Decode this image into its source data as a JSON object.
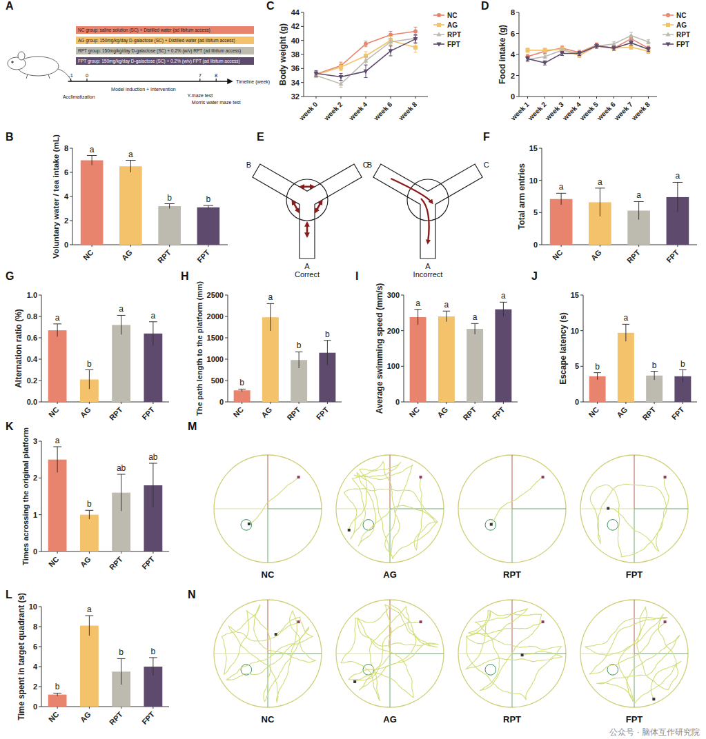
{
  "chart_data": [
    {
      "panel": "C",
      "type": "line",
      "ylabel": "Body weight (g)",
      "categories": [
        "week 0",
        "week 2",
        "week 4",
        "week 6",
        "week 8"
      ],
      "ylim": [
        32,
        44
      ],
      "yticks": [
        32,
        34,
        36,
        38,
        40,
        42,
        44
      ],
      "legend": "right",
      "series": [
        {
          "name": "NC",
          "color": "#e8836d",
          "marker": "circle",
          "values": [
            35.2,
            36.4,
            39.5,
            40.8,
            41.3
          ],
          "errors": [
            0.4,
            0.5,
            0.4,
            0.5,
            0.6
          ]
        },
        {
          "name": "AG",
          "color": "#f3c26a",
          "marker": "square",
          "values": [
            35.1,
            36.2,
            37.8,
            40.0,
            39.0
          ],
          "errors": [
            0.4,
            0.5,
            0.6,
            0.6,
            0.7
          ]
        },
        {
          "name": "RPT",
          "color": "#bdbab0",
          "marker": "triangle",
          "values": [
            35.0,
            33.8,
            37.1,
            39.8,
            40.3
          ],
          "errors": [
            0.3,
            0.5,
            0.6,
            0.5,
            0.6
          ]
        },
        {
          "name": "FPT",
          "color": "#5d4a6c",
          "marker": "triangle-down",
          "values": [
            35.3,
            34.8,
            35.6,
            38.5,
            40.2
          ],
          "errors": [
            0.4,
            0.5,
            0.9,
            0.7,
            0.6
          ]
        }
      ]
    },
    {
      "panel": "D",
      "type": "line",
      "ylabel": "Food intake (g)",
      "categories": [
        "week 1",
        "week 2",
        "week 3",
        "week 4",
        "week 5",
        "week 6",
        "week 7",
        "week 8"
      ],
      "ylim": [
        0,
        8
      ],
      "yticks": [
        0,
        2,
        4,
        6,
        8
      ],
      "legend": "right",
      "series": [
        {
          "name": "NC",
          "color": "#e8836d",
          "marker": "circle",
          "values": [
            3.8,
            4.3,
            4.6,
            4.2,
            4.9,
            4.6,
            5.5,
            4.6
          ],
          "errors": [
            0.2,
            0.2,
            0.2,
            0.2,
            0.2,
            0.2,
            0.3,
            0.2
          ]
        },
        {
          "name": "AG",
          "color": "#f3c26a",
          "marker": "square",
          "values": [
            4.4,
            4.4,
            4.5,
            3.9,
            4.8,
            4.6,
            4.7,
            4.3
          ],
          "errors": [
            0.2,
            0.2,
            0.2,
            0.2,
            0.2,
            0.2,
            0.2,
            0.2
          ]
        },
        {
          "name": "RPT",
          "color": "#bdbab0",
          "marker": "triangle",
          "values": [
            3.5,
            3.8,
            4.4,
            4.1,
            4.8,
            5.0,
            5.8,
            5.2
          ],
          "errors": [
            0.2,
            0.2,
            0.2,
            0.2,
            0.2,
            0.2,
            0.3,
            0.2
          ]
        },
        {
          "name": "FPT",
          "color": "#5d4a6c",
          "marker": "triangle-down",
          "values": [
            3.6,
            3.2,
            4.1,
            4.1,
            4.8,
            4.6,
            5.1,
            4.5
          ],
          "errors": [
            0.2,
            0.2,
            0.2,
            0.2,
            0.2,
            0.2,
            0.2,
            0.2
          ]
        }
      ]
    },
    {
      "panel": "B",
      "type": "bar",
      "ylabel": "Voluntary water / tea intake (mL)",
      "categories": [
        "NC",
        "AG",
        "RPT",
        "FPT"
      ],
      "values": [
        7.0,
        6.5,
        3.2,
        3.1
      ],
      "errors": [
        0.4,
        0.5,
        0.2,
        0.15
      ],
      "significance": [
        "a",
        "a",
        "b",
        "b"
      ],
      "colors": [
        "#e8836d",
        "#f3c26a",
        "#bdbab0",
        "#5d4a6c"
      ],
      "ylim": [
        0,
        8
      ],
      "yticks": [
        0,
        2,
        4,
        6,
        8
      ]
    },
    {
      "panel": "F",
      "type": "bar",
      "ylabel": "Total arm entries",
      "categories": [
        "NC",
        "AG",
        "RPT",
        "FPT"
      ],
      "values": [
        7.1,
        6.6,
        5.3,
        7.4
      ],
      "errors": [
        0.9,
        2.2,
        1.4,
        2.3
      ],
      "significance": [
        "a",
        "a",
        "a",
        "a"
      ],
      "colors": [
        "#e8836d",
        "#f3c26a",
        "#bdbab0",
        "#5d4a6c"
      ],
      "ylim": [
        0,
        15
      ],
      "yticks": [
        0,
        5,
        10,
        15
      ]
    },
    {
      "panel": "G",
      "type": "bar",
      "ylabel": "Alternation ratio (%)",
      "categories": [
        "NC",
        "AG",
        "RPT",
        "FPT"
      ],
      "values": [
        0.67,
        0.21,
        0.72,
        0.64
      ],
      "errors": [
        0.06,
        0.09,
        0.09,
        0.11
      ],
      "significance": [
        "a",
        "b",
        "a",
        "a"
      ],
      "colors": [
        "#e8836d",
        "#f3c26a",
        "#bdbab0",
        "#5d4a6c"
      ],
      "ylim": [
        0,
        1
      ],
      "yticks": [
        {
          "value": 0,
          "label": "0.0"
        },
        0.2,
        0.4,
        0.6,
        0.8,
        {
          "value": 1,
          "label": "1.0"
        }
      ]
    },
    {
      "panel": "H",
      "type": "bar",
      "ylabel": "The path length to the platform (mm)",
      "categories": [
        "NC",
        "AG",
        "RPT",
        "FPT"
      ],
      "values": [
        270,
        1980,
        980,
        1150
      ],
      "errors": [
        30,
        320,
        190,
        290
      ],
      "significance": [
        "b",
        "a",
        "b",
        "b"
      ],
      "colors": [
        "#e8836d",
        "#f3c26a",
        "#bdbab0",
        "#5d4a6c"
      ],
      "ylim": [
        0,
        2500
      ],
      "yticks": [
        0,
        500,
        1000,
        1500,
        2000,
        2500
      ]
    },
    {
      "panel": "I",
      "type": "bar",
      "ylabel": "Average swimming speed (mm/s)",
      "categories": [
        "NC",
        "AG",
        "RPT",
        "FPT"
      ],
      "values": [
        238,
        240,
        205,
        260
      ],
      "errors": [
        22,
        15,
        15,
        20
      ],
      "significance": [
        "a",
        "a",
        "a",
        "a"
      ],
      "colors": [
        "#e8836d",
        "#f3c26a",
        "#bdbab0",
        "#5d4a6c"
      ],
      "ylim": [
        0,
        300
      ],
      "yticks": [
        0,
        100,
        200,
        300
      ]
    },
    {
      "panel": "J",
      "type": "bar",
      "ylabel": "Escape latency (s)",
      "categories": [
        "NC",
        "AG",
        "RPT",
        "FPT"
      ],
      "values": [
        3.6,
        9.7,
        3.7,
        3.6
      ],
      "errors": [
        0.5,
        1.2,
        0.6,
        0.9
      ],
      "significance": [
        "b",
        "a",
        "b",
        "b"
      ],
      "colors": [
        "#e8836d",
        "#f3c26a",
        "#bdbab0",
        "#5d4a6c"
      ],
      "ylim": [
        0,
        15
      ],
      "yticks": [
        0,
        5,
        10,
        15
      ]
    },
    {
      "panel": "K",
      "type": "bar",
      "ylabel": "Times acrossing the original platform",
      "categories": [
        "NC",
        "AG",
        "RPT",
        "FPT"
      ],
      "values": [
        2.5,
        1.0,
        1.6,
        1.8
      ],
      "errors": [
        0.35,
        0.12,
        0.5,
        0.6
      ],
      "significance": [
        "a",
        "b",
        "ab",
        "ab"
      ],
      "colors": [
        "#e8836d",
        "#f3c26a",
        "#bdbab0",
        "#5d4a6c"
      ],
      "ylim": [
        0,
        3
      ],
      "yticks": [
        0,
        1,
        2,
        3
      ]
    },
    {
      "panel": "L",
      "type": "bar",
      "ylabel": "Time spent in target quadrant (s)",
      "categories": [
        "NC",
        "AG",
        "RPT",
        "FPT"
      ],
      "values": [
        1.2,
        8.1,
        3.5,
        4.0
      ],
      "errors": [
        0.15,
        1.0,
        1.3,
        0.9
      ],
      "significance": [
        "b",
        "a",
        "b",
        "b"
      ],
      "colors": [
        "#e8836d",
        "#f3c26a",
        "#bdbab0",
        "#5d4a6c"
      ],
      "ylim": [
        0,
        10
      ],
      "yticks": [
        0,
        2,
        4,
        6,
        8,
        10
      ]
    }
  ],
  "panel_a": {
    "panel": "A",
    "groups": [
      {
        "text": "NC group: saline solution (SC) + Distilled water (ad libitum access)",
        "color": "#e8836d"
      },
      {
        "text": "AG group: 150mg/kg/day D-galactose (SC) + Distilled water (ad libitum access)",
        "color": "#f3c26a"
      },
      {
        "text": "RPT group: 150mg/kg/day D-galactose (SC) + 0.2% (w/v) RPT (ad libitum access)",
        "color": "#bdbab0"
      },
      {
        "text": "FPT group: 150mg/kg/day D-galactose (SC) + 0.2% (w/v) FPT (ad libitum access)",
        "color": "#5d4a6c"
      }
    ],
    "timeline": {
      "ticks": [
        -1,
        0,
        7,
        8
      ],
      "phases": [
        "Acclimatization",
        "Model induction + Intervention",
        "Y-maze test",
        "Morris water maze test"
      ],
      "axis_label": "Timeline (week)"
    }
  },
  "panel_e": {
    "panel": "E",
    "arms": [
      "A",
      "B",
      "C"
    ],
    "captions": [
      "Correct",
      "Incorrect"
    ]
  },
  "panel_m": {
    "panel": "M",
    "labels": [
      "NC",
      "AG",
      "RPT",
      "FPT"
    ]
  },
  "panel_n": {
    "panel": "N",
    "labels": [
      "NC",
      "AG",
      "RPT",
      "FPT"
    ]
  },
  "watermark": "公众号 · 脑体互作研究院"
}
